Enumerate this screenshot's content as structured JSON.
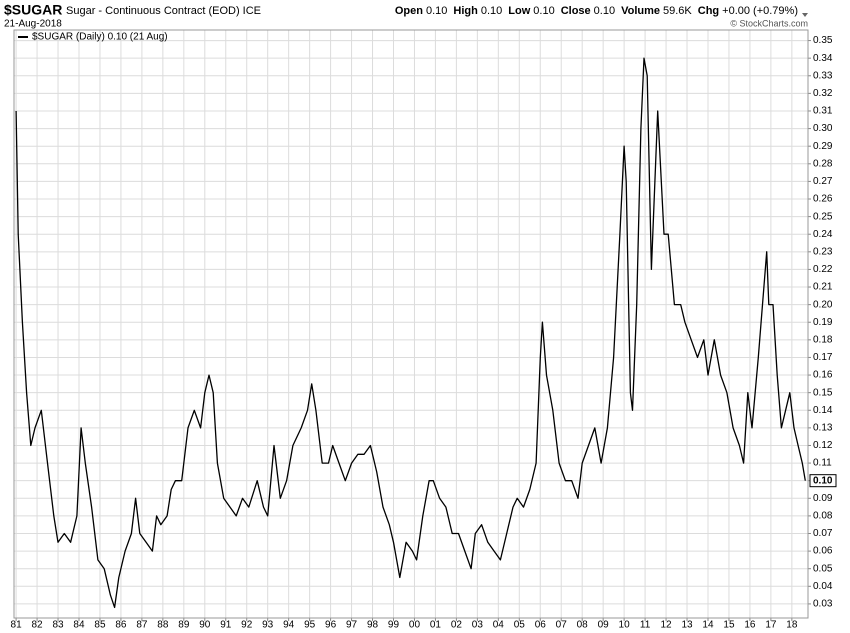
{
  "chart_data": {
    "type": "line",
    "title": "$SUGAR",
    "subtitle": "Sugar - Continuous Contract (EOD) ICE",
    "date": "21-Aug-2018",
    "credit": "© StockCharts.com",
    "quote": [
      {
        "label": "Open",
        "value": "0.10"
      },
      {
        "label": "High",
        "value": "0.10"
      },
      {
        "label": "Low",
        "value": "0.10"
      },
      {
        "label": "Close",
        "value": "0.10"
      },
      {
        "label": "Volume",
        "value": "59.6K"
      },
      {
        "label": "Chg",
        "value": "+0.00 (+0.79%)"
      }
    ],
    "last_value_label": "0.10",
    "x": [
      1981.0,
      1981.1,
      1981.3,
      1981.5,
      1981.7,
      1981.9,
      1982.2,
      1982.5,
      1982.8,
      1983.0,
      1983.3,
      1983.6,
      1983.9,
      1984.1,
      1984.3,
      1984.6,
      1984.9,
      1985.2,
      1985.5,
      1985.7,
      1985.9,
      1986.2,
      1986.5,
      1986.7,
      1986.9,
      1987.2,
      1987.5,
      1987.7,
      1987.9,
      1988.2,
      1988.4,
      1988.6,
      1988.9,
      1989.2,
      1989.5,
      1989.8,
      1990.0,
      1990.2,
      1990.4,
      1990.6,
      1990.9,
      1991.2,
      1991.5,
      1991.8,
      1992.1,
      1992.5,
      1992.8,
      1993.0,
      1993.3,
      1993.6,
      1993.9,
      1994.2,
      1994.6,
      1994.9,
      1995.1,
      1995.3,
      1995.6,
      1995.9,
      1996.1,
      1996.4,
      1996.7,
      1997.0,
      1997.3,
      1997.6,
      1997.9,
      1998.2,
      1998.5,
      1998.8,
      1999.0,
      1999.3,
      1999.6,
      1999.9,
      2000.1,
      2000.4,
      2000.7,
      2000.9,
      2001.2,
      2001.5,
      2001.8,
      2002.1,
      2002.4,
      2002.7,
      2002.9,
      2003.2,
      2003.5,
      2003.8,
      2004.1,
      2004.4,
      2004.7,
      2004.9,
      2005.2,
      2005.5,
      2005.8,
      2006.0,
      2006.1,
      2006.3,
      2006.6,
      2006.9,
      2007.2,
      2007.5,
      2007.8,
      2008.0,
      2008.3,
      2008.6,
      2008.9,
      2009.2,
      2009.5,
      2009.8,
      2010.0,
      2010.1,
      2010.3,
      2010.4,
      2010.6,
      2010.8,
      2010.95,
      2011.1,
      2011.3,
      2011.5,
      2011.6,
      2011.9,
      2012.1,
      2012.4,
      2012.7,
      2012.9,
      2013.2,
      2013.5,
      2013.8,
      2014.0,
      2014.3,
      2014.6,
      2014.9,
      2015.2,
      2015.5,
      2015.7,
      2015.9,
      2016.1,
      2016.4,
      2016.6,
      2016.8,
      2016.9,
      2017.1,
      2017.3,
      2017.5,
      2017.7,
      2017.9,
      2018.1,
      2018.3,
      2018.5,
      2018.64
    ],
    "series": [
      {
        "name": "$SUGAR (Daily) 0.10 (21 Aug)",
        "color": "#000000",
        "values": [
          0.31,
          0.24,
          0.19,
          0.15,
          0.12,
          0.13,
          0.14,
          0.11,
          0.08,
          0.065,
          0.07,
          0.065,
          0.08,
          0.13,
          0.11,
          0.085,
          0.055,
          0.05,
          0.035,
          0.028,
          0.045,
          0.06,
          0.07,
          0.09,
          0.07,
          0.065,
          0.06,
          0.08,
          0.075,
          0.08,
          0.095,
          0.1,
          0.1,
          0.13,
          0.14,
          0.13,
          0.15,
          0.16,
          0.15,
          0.11,
          0.09,
          0.085,
          0.08,
          0.09,
          0.085,
          0.1,
          0.085,
          0.08,
          0.12,
          0.09,
          0.1,
          0.12,
          0.13,
          0.14,
          0.155,
          0.14,
          0.11,
          0.11,
          0.12,
          0.11,
          0.1,
          0.11,
          0.115,
          0.115,
          0.12,
          0.105,
          0.085,
          0.075,
          0.065,
          0.045,
          0.065,
          0.06,
          0.055,
          0.08,
          0.1,
          0.1,
          0.09,
          0.085,
          0.07,
          0.07,
          0.06,
          0.05,
          0.07,
          0.075,
          0.065,
          0.06,
          0.055,
          0.07,
          0.085,
          0.09,
          0.085,
          0.095,
          0.11,
          0.17,
          0.19,
          0.16,
          0.14,
          0.11,
          0.1,
          0.1,
          0.09,
          0.11,
          0.12,
          0.13,
          0.11,
          0.13,
          0.17,
          0.24,
          0.29,
          0.27,
          0.15,
          0.14,
          0.2,
          0.3,
          0.34,
          0.33,
          0.22,
          0.28,
          0.31,
          0.24,
          0.24,
          0.2,
          0.2,
          0.19,
          0.18,
          0.17,
          0.18,
          0.16,
          0.18,
          0.16,
          0.15,
          0.13,
          0.12,
          0.11,
          0.15,
          0.13,
          0.17,
          0.2,
          0.23,
          0.2,
          0.2,
          0.16,
          0.13,
          0.14,
          0.15,
          0.13,
          0.12,
          0.11,
          0.1
        ]
      }
    ],
    "xlim": [
      1980.9,
      2018.77
    ],
    "ylim": [
      0.022,
      0.356
    ],
    "xticks": [
      {
        "value": 1981,
        "label": "81"
      },
      {
        "value": 1982,
        "label": "82"
      },
      {
        "value": 1983,
        "label": "83"
      },
      {
        "value": 1984,
        "label": "84"
      },
      {
        "value": 1985,
        "label": "85"
      },
      {
        "value": 1986,
        "label": "86"
      },
      {
        "value": 1987,
        "label": "87"
      },
      {
        "value": 1988,
        "label": "88"
      },
      {
        "value": 1989,
        "label": "89"
      },
      {
        "value": 1990,
        "label": "90"
      },
      {
        "value": 1991,
        "label": "91"
      },
      {
        "value": 1992,
        "label": "92"
      },
      {
        "value": 1993,
        "label": "93"
      },
      {
        "value": 1994,
        "label": "94"
      },
      {
        "value": 1995,
        "label": "95"
      },
      {
        "value": 1996,
        "label": "96"
      },
      {
        "value": 1997,
        "label": "97"
      },
      {
        "value": 1998,
        "label": "98"
      },
      {
        "value": 1999,
        "label": "99"
      },
      {
        "value": 2000,
        "label": "00"
      },
      {
        "value": 2001,
        "label": "01"
      },
      {
        "value": 2002,
        "label": "02"
      },
      {
        "value": 2003,
        "label": "03"
      },
      {
        "value": 2004,
        "label": "04"
      },
      {
        "value": 2005,
        "label": "05"
      },
      {
        "value": 2006,
        "label": "06"
      },
      {
        "value": 2007,
        "label": "07"
      },
      {
        "value": 2008,
        "label": "08"
      },
      {
        "value": 2009,
        "label": "09"
      },
      {
        "value": 2010,
        "label": "10"
      },
      {
        "value": 2011,
        "label": "11"
      },
      {
        "value": 2012,
        "label": "12"
      },
      {
        "value": 2013,
        "label": "13"
      },
      {
        "value": 2014,
        "label": "14"
      },
      {
        "value": 2015,
        "label": "15"
      },
      {
        "value": 2016,
        "label": "16"
      },
      {
        "value": 2017,
        "label": "17"
      },
      {
        "value": 2018,
        "label": "18"
      }
    ],
    "yticks": [
      0.03,
      0.04,
      0.05,
      0.06,
      0.07,
      0.08,
      0.09,
      {
        "value": 0.1,
        "label": "0.10"
      },
      0.11,
      0.12,
      0.13,
      0.14,
      0.15,
      0.16,
      0.17,
      0.18,
      0.19,
      {
        "value": 0.2,
        "label": "0.20"
      },
      0.21,
      0.22,
      0.23,
      0.24,
      0.25,
      0.26,
      0.27,
      0.28,
      0.29,
      {
        "value": 0.3,
        "label": "0.30"
      },
      0.31,
      0.32,
      0.33,
      0.34,
      0.35
    ],
    "grid": true
  }
}
